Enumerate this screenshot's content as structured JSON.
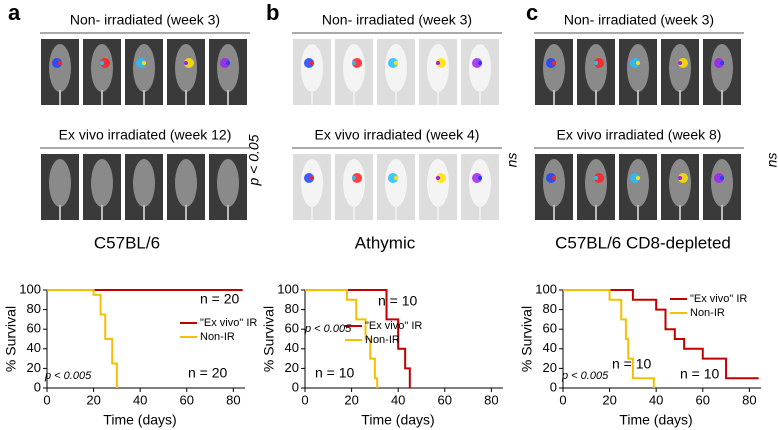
{
  "panels": [
    {
      "label": "a",
      "image_groups": [
        {
          "title": "Non- irradiated (week 3)"
        },
        {
          "title": "Ex vivo irradiated (week 12)"
        }
      ],
      "stat": "p < 0.05"
    },
    {
      "label": "b",
      "image_groups": [
        {
          "title": "Non- irradiated (week 3)"
        },
        {
          "title": "Ex vivo irradiated (week 4)"
        }
      ],
      "stat": "ns"
    },
    {
      "label": "c",
      "image_groups": [
        {
          "title": "Non- irradiated (week 3)"
        },
        {
          "title": "Ex vivo irradiated (week 8)"
        }
      ],
      "stat": "ns"
    }
  ],
  "chart_data": [
    {
      "type": "step",
      "title": "C57BL/6",
      "x_label": "Time (days)",
      "y_label": "% Survival",
      "xlim": [
        0,
        85
      ],
      "xticks": [
        0,
        20,
        40,
        60,
        80
      ],
      "ylim": [
        0,
        100
      ],
      "yticks": [
        0,
        20,
        40,
        60,
        80,
        100
      ],
      "series": [
        {
          "name": "\"Ex vivo\" IR",
          "color": "#c00000",
          "x": [
            0,
            84
          ],
          "values": [
            100,
            100
          ]
        },
        {
          "name": "Non-IR",
          "color": "#f5c000",
          "x": [
            0,
            20,
            23,
            25,
            28,
            30
          ],
          "values": [
            100,
            95,
            75,
            50,
            25,
            0
          ]
        }
      ],
      "annotations": [
        "n = 20",
        "n = 20",
        "p < 0.005"
      ]
    },
    {
      "type": "step",
      "title": "Athymic",
      "x_label": "Time (days)",
      "y_label": "% Survival",
      "xlim": [
        0,
        85
      ],
      "xticks": [
        0,
        20,
        40,
        60,
        80
      ],
      "ylim": [
        0,
        100
      ],
      "yticks": [
        0,
        20,
        40,
        60,
        80,
        100
      ],
      "series": [
        {
          "name": "\"Ex vivo\" IR",
          "color": "#c00000",
          "x": [
            0,
            35,
            40,
            43,
            45
          ],
          "values": [
            100,
            70,
            40,
            20,
            0
          ]
        },
        {
          "name": "Non-IR",
          "color": "#f5c000",
          "x": [
            0,
            18,
            22,
            26,
            28,
            30,
            31
          ],
          "values": [
            100,
            90,
            70,
            50,
            30,
            10,
            0
          ]
        }
      ],
      "annotations": [
        "n = 10",
        "n = 10",
        "p < 0.005"
      ]
    },
    {
      "type": "step",
      "title": "C57BL/6 CD8-depleted",
      "x_label": "Time (days)",
      "y_label": "% Survival",
      "xlim": [
        0,
        85
      ],
      "xticks": [
        0,
        20,
        40,
        60,
        80
      ],
      "ylim": [
        0,
        100
      ],
      "yticks": [
        0,
        20,
        40,
        60,
        80,
        100
      ],
      "series": [
        {
          "name": "\"Ex vivo\" IR",
          "color": "#c00000",
          "x": [
            0,
            30,
            40,
            44,
            48,
            52,
            60,
            70,
            84
          ],
          "values": [
            100,
            90,
            80,
            60,
            50,
            40,
            30,
            10,
            10
          ]
        },
        {
          "name": "Non-IR",
          "color": "#f5c000",
          "x": [
            0,
            20,
            25,
            27,
            28,
            30,
            39
          ],
          "values": [
            100,
            90,
            70,
            50,
            30,
            10,
            0
          ]
        }
      ],
      "annotations": [
        "n = 10",
        "n = 10",
        "p < 0.005"
      ]
    }
  ]
}
